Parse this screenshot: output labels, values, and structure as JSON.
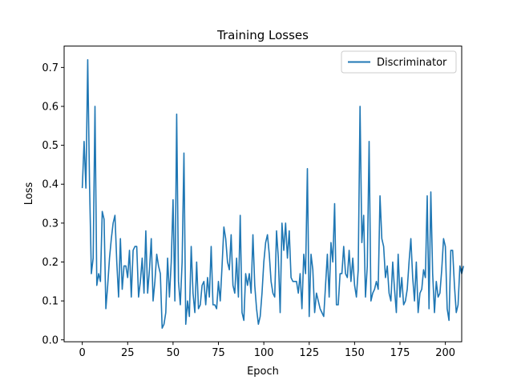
{
  "chart_data": {
    "type": "line",
    "title": "Training Losses",
    "xlabel": "Epoch",
    "ylabel": "Loss",
    "xlim": [
      -10,
      209
    ],
    "ylim": [
      -0.005,
      0.755
    ],
    "xticks": [
      0,
      25,
      50,
      75,
      100,
      125,
      150,
      175,
      200
    ],
    "yticks": [
      0.0,
      0.1,
      0.2,
      0.3,
      0.4,
      0.5,
      0.6,
      0.7
    ],
    "grid": false,
    "legend_position": "top-right",
    "series": [
      {
        "name": "Discriminator",
        "color": "#1f77b4",
        "values": [
          0.39,
          0.51,
          0.39,
          0.72,
          0.4,
          0.17,
          0.21,
          0.6,
          0.14,
          0.17,
          0.15,
          0.33,
          0.31,
          0.08,
          0.14,
          0.21,
          0.26,
          0.3,
          0.32,
          0.2,
          0.11,
          0.26,
          0.13,
          0.19,
          0.19,
          0.16,
          0.23,
          0.11,
          0.23,
          0.24,
          0.24,
          0.11,
          0.15,
          0.21,
          0.12,
          0.28,
          0.12,
          0.18,
          0.26,
          0.1,
          0.15,
          0.22,
          0.19,
          0.17,
          0.03,
          0.04,
          0.07,
          0.21,
          0.11,
          0.2,
          0.36,
          0.1,
          0.58,
          0.15,
          0.09,
          0.2,
          0.48,
          0.04,
          0.1,
          0.06,
          0.24,
          0.12,
          0.07,
          0.2,
          0.08,
          0.09,
          0.14,
          0.15,
          0.09,
          0.16,
          0.11,
          0.24,
          0.09,
          0.09,
          0.08,
          0.15,
          0.1,
          0.19,
          0.29,
          0.26,
          0.2,
          0.18,
          0.27,
          0.14,
          0.12,
          0.21,
          0.11,
          0.32,
          0.07,
          0.05,
          0.17,
          0.14,
          0.17,
          0.12,
          0.27,
          0.14,
          0.08,
          0.04,
          0.06,
          0.12,
          0.2,
          0.25,
          0.27,
          0.22,
          0.15,
          0.12,
          0.11,
          0.28,
          0.21,
          0.07,
          0.3,
          0.23,
          0.3,
          0.21,
          0.28,
          0.16,
          0.15,
          0.15,
          0.15,
          0.12,
          0.17,
          0.08,
          0.22,
          0.17,
          0.44,
          0.06,
          0.22,
          0.18,
          0.07,
          0.12,
          0.1,
          0.08,
          0.07,
          0.06,
          0.14,
          0.22,
          0.11,
          0.25,
          0.2,
          0.35,
          0.09,
          0.09,
          0.17,
          0.17,
          0.24,
          0.17,
          0.16,
          0.23,
          0.15,
          0.21,
          0.14,
          0.11,
          0.18,
          0.6,
          0.25,
          0.32,
          0.11,
          0.19,
          0.51,
          0.1,
          0.12,
          0.13,
          0.15,
          0.13,
          0.37,
          0.26,
          0.24,
          0.16,
          0.19,
          0.12,
          0.1,
          0.2,
          0.13,
          0.07,
          0.22,
          0.11,
          0.16,
          0.09,
          0.1,
          0.13,
          0.2,
          0.26,
          0.16,
          0.1,
          0.2,
          0.07,
          0.12,
          0.13,
          0.18,
          0.16,
          0.37,
          0.08,
          0.38,
          0.17,
          0.07,
          0.15,
          0.11,
          0.12,
          0.18,
          0.26,
          0.24,
          0.08,
          0.05,
          0.23,
          0.23,
          0.14,
          0.07,
          0.09,
          0.19,
          0.17,
          0.19
        ]
      }
    ]
  }
}
